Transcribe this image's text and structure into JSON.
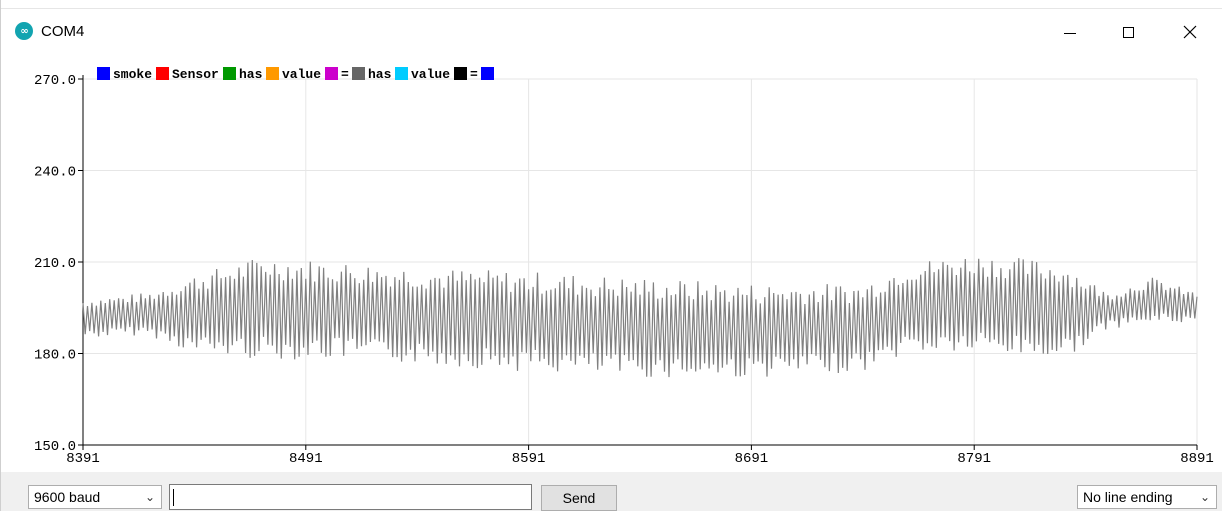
{
  "window": {
    "title": "COM4",
    "app_icon": "arduino-infinity-icon",
    "controls": [
      "minimize-icon",
      "maximize-icon",
      "close-icon"
    ]
  },
  "chart_data": {
    "type": "line",
    "title": "",
    "xlabel": "",
    "ylabel": "",
    "xlim": [
      8391,
      8891
    ],
    "ylim": [
      150.0,
      270.0
    ],
    "x_ticks": [
      "8391",
      "8491",
      "8591",
      "8691",
      "8791",
      "8891"
    ],
    "y_ticks": [
      "270.0",
      "240.0",
      "210.0",
      "180.0",
      "150.0"
    ],
    "grid": true,
    "legend": [
      {
        "label": "smoke",
        "color": "#0000ff"
      },
      {
        "label": "Sensor",
        "color": "#ff0000"
      },
      {
        "label": "has",
        "color": "#009900"
      },
      {
        "label": "value",
        "color": "#ff9900"
      },
      {
        "label": "=",
        "color": "#cc00cc"
      },
      {
        "label": "has",
        "color": "#666666"
      },
      {
        "label": "value",
        "color": "#00ccff"
      },
      {
        "label": "=",
        "color": "#000000"
      },
      {
        "label": "",
        "color": "#0000ff"
      }
    ],
    "legend_position": "top-left",
    "series": [
      {
        "color": "#808080",
        "description": "oscillating sensor reading, ~2-sample period",
        "envelope": [
          {
            "x": 8391,
            "low": 185,
            "high": 198
          },
          {
            "x": 8420,
            "low": 186,
            "high": 200
          },
          {
            "x": 8441,
            "low": 180,
            "high": 206
          },
          {
            "x": 8471,
            "low": 178,
            "high": 212
          },
          {
            "x": 8511,
            "low": 178,
            "high": 210
          },
          {
            "x": 8551,
            "low": 176,
            "high": 208
          },
          {
            "x": 8591,
            "low": 174,
            "high": 207
          },
          {
            "x": 8641,
            "low": 172,
            "high": 205
          },
          {
            "x": 8691,
            "low": 172,
            "high": 203
          },
          {
            "x": 8741,
            "low": 174,
            "high": 203
          },
          {
            "x": 8761,
            "low": 180,
            "high": 210
          },
          {
            "x": 8791,
            "low": 180,
            "high": 213
          },
          {
            "x": 8831,
            "low": 178,
            "high": 210
          },
          {
            "x": 8851,
            "low": 188,
            "high": 200
          },
          {
            "x": 8871,
            "low": 190,
            "high": 205
          },
          {
            "x": 8891,
            "low": 190,
            "high": 200
          }
        ]
      }
    ]
  },
  "bottom": {
    "baud_label": "9600 baud",
    "input_value": "",
    "send_label": "Send",
    "line_ending_label": "No line ending"
  }
}
